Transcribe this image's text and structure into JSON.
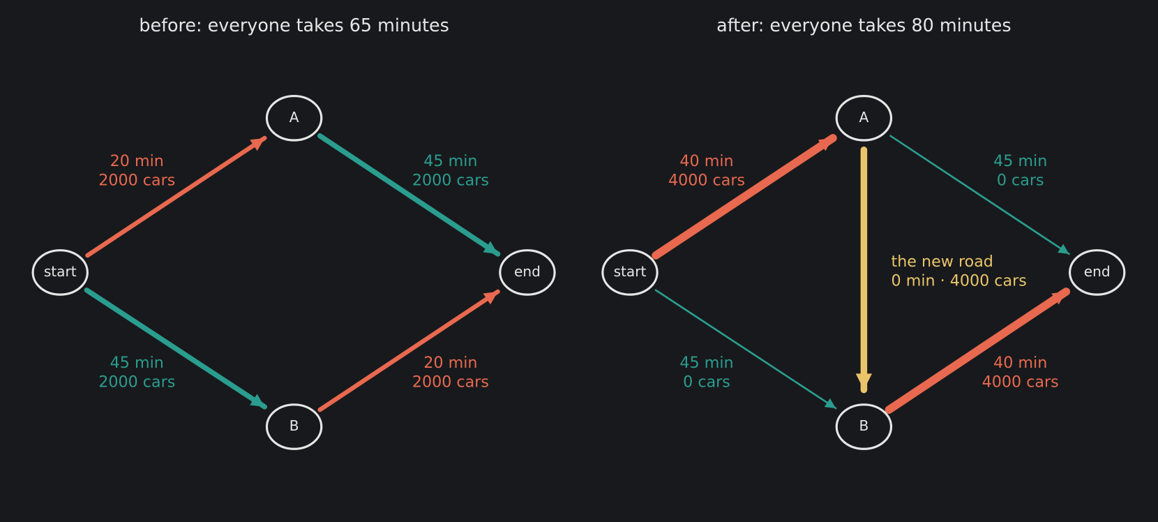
{
  "panels": [
    {
      "title": "before: everyone takes 65 minutes",
      "nodes": [
        "start",
        "A",
        "B",
        "end"
      ],
      "edges": [
        {
          "time": "20 min",
          "cars": "2000 cars"
        },
        {
          "time": "45 min",
          "cars": "2000 cars"
        },
        {
          "time": "45 min",
          "cars": "2000 cars"
        },
        {
          "time": "20 min",
          "cars": "2000 cars"
        }
      ]
    },
    {
      "title": "after: everyone takes 80 minutes",
      "nodes": [
        "start",
        "A",
        "B",
        "end"
      ],
      "edges": [
        {
          "time": "40 min",
          "cars": "4000 cars"
        },
        {
          "time": "45 min",
          "cars": "0 cars"
        },
        {
          "time": "45 min",
          "cars": "0 cars"
        },
        {
          "time": "40 min",
          "cars": "4000 cars"
        }
      ],
      "new_road": {
        "label": "the new road",
        "detail": "0 min · 4000 cars"
      }
    }
  ]
}
